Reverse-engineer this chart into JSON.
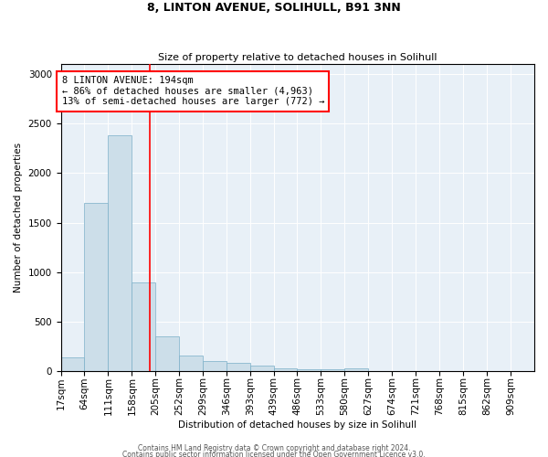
{
  "title1": "8, LINTON AVENUE, SOLIHULL, B91 3NN",
  "title2": "Size of property relative to detached houses in Solihull",
  "xlabel": "Distribution of detached houses by size in Solihull",
  "ylabel": "Number of detached properties",
  "bar_color": "#ccdee9",
  "bar_edge_color": "#7aafc8",
  "background_color": "#e8f0f7",
  "red_line_x": 194,
  "annotation_line1": "8 LINTON AVENUE: 194sqm",
  "annotation_line2": "← 86% of detached houses are smaller (4,963)",
  "annotation_line3": "13% of semi-detached houses are larger (772) →",
  "footer_text1": "Contains HM Land Registry data © Crown copyright and database right 2024.",
  "footer_text2": "Contains public sector information licensed under the Open Government Licence v3.0.",
  "bin_edges": [
    17,
    64,
    111,
    158,
    205,
    252,
    299,
    346,
    393,
    439,
    486,
    533,
    580,
    627,
    674,
    721,
    768,
    815,
    862,
    909,
    956
  ],
  "bar_heights": [
    140,
    1700,
    2380,
    900,
    350,
    160,
    100,
    80,
    55,
    30,
    20,
    20,
    30,
    0,
    0,
    0,
    0,
    0,
    0,
    0
  ],
  "ylim": [
    0,
    3100
  ],
  "yticks": [
    0,
    500,
    1000,
    1500,
    2000,
    2500,
    3000
  ]
}
